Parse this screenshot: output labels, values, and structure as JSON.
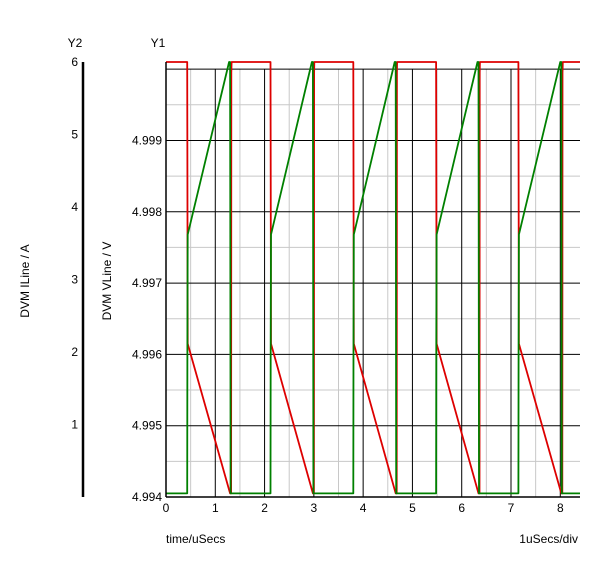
{
  "chart_data": {
    "type": "line",
    "x_axis": {
      "label": "time/uSecs",
      "scale_note": "1uSecs/div",
      "range": [
        0,
        8.4
      ],
      "ticks": [
        0,
        1,
        2,
        3,
        4,
        5,
        6,
        7,
        8
      ]
    },
    "y1_axis": {
      "header": "Y1",
      "label": "DVM VLine / V",
      "range": [
        4.994,
        5.0001
      ],
      "major_ticks": [
        4.994,
        4.995,
        4.996,
        4.997,
        4.998,
        4.999
      ],
      "minor_ticks": [
        4.9945,
        4.9955,
        4.9965,
        4.9975,
        4.9985,
        4.9995
      ]
    },
    "y2_axis": {
      "header": "Y2",
      "label": "DVM ILine / A",
      "range": [
        0,
        6
      ],
      "ticks": [
        1,
        2,
        3,
        4,
        5,
        6
      ]
    },
    "grid": true,
    "series": [
      {
        "color": "#dd0000",
        "axis": "y1",
        "points": [
          [
            0,
            5.0001
          ],
          [
            0.43,
            5.0001
          ],
          [
            0.435,
            4.9986
          ],
          [
            0.44,
            4.99615
          ],
          [
            1.3,
            4.99405
          ],
          [
            1.32,
            4.99405
          ],
          [
            1.325,
            4.99995
          ],
          [
            1.33,
            5.0001
          ],
          [
            2.12,
            5.0001
          ],
          [
            2.125,
            4.9986
          ],
          [
            2.13,
            4.99615
          ],
          [
            2.98,
            4.99405
          ],
          [
            3.0,
            4.99405
          ],
          [
            3.005,
            4.99995
          ],
          [
            3.01,
            5.0001
          ],
          [
            3.8,
            5.0001
          ],
          [
            3.805,
            4.9986
          ],
          [
            3.81,
            4.99615
          ],
          [
            4.66,
            4.99405
          ],
          [
            4.68,
            4.99405
          ],
          [
            4.685,
            4.99995
          ],
          [
            4.69,
            5.0001
          ],
          [
            5.48,
            5.0001
          ],
          [
            5.485,
            4.9986
          ],
          [
            5.49,
            4.99615
          ],
          [
            6.34,
            4.99405
          ],
          [
            6.36,
            4.99405
          ],
          [
            6.365,
            4.99995
          ],
          [
            6.37,
            5.0001
          ],
          [
            7.15,
            5.0001
          ],
          [
            7.155,
            4.9986
          ],
          [
            7.16,
            4.99615
          ],
          [
            8.02,
            4.99405
          ],
          [
            8.04,
            4.99405
          ],
          [
            8.045,
            4.99995
          ],
          [
            8.05,
            5.0001
          ],
          [
            8.4,
            5.0001
          ]
        ]
      },
      {
        "color": "#008000",
        "axis": "y1",
        "points": [
          [
            0,
            4.99405
          ],
          [
            0.43,
            4.99405
          ],
          [
            0.435,
            4.9962
          ],
          [
            0.44,
            4.99768
          ],
          [
            1.28,
            5.0001
          ],
          [
            1.3,
            5.0001
          ],
          [
            1.305,
            4.9979
          ],
          [
            1.31,
            4.99405
          ],
          [
            2.12,
            4.99405
          ],
          [
            2.125,
            4.9962
          ],
          [
            2.13,
            4.99768
          ],
          [
            2.96,
            5.0001
          ],
          [
            2.98,
            5.0001
          ],
          [
            2.985,
            4.9979
          ],
          [
            2.99,
            4.99405
          ],
          [
            3.8,
            4.99405
          ],
          [
            3.805,
            4.9962
          ],
          [
            3.81,
            4.99768
          ],
          [
            4.64,
            5.0001
          ],
          [
            4.66,
            5.0001
          ],
          [
            4.665,
            4.9979
          ],
          [
            4.67,
            4.99405
          ],
          [
            5.48,
            4.99405
          ],
          [
            5.485,
            4.9962
          ],
          [
            5.49,
            4.99768
          ],
          [
            6.32,
            5.0001
          ],
          [
            6.34,
            5.0001
          ],
          [
            6.345,
            4.9979
          ],
          [
            6.35,
            4.99405
          ],
          [
            7.15,
            4.99405
          ],
          [
            7.155,
            4.9962
          ],
          [
            7.16,
            4.99768
          ],
          [
            8.0,
            5.0001
          ],
          [
            8.02,
            5.0001
          ],
          [
            8.025,
            4.9979
          ],
          [
            8.03,
            4.99405
          ],
          [
            8.4,
            4.99405
          ]
        ]
      }
    ]
  }
}
